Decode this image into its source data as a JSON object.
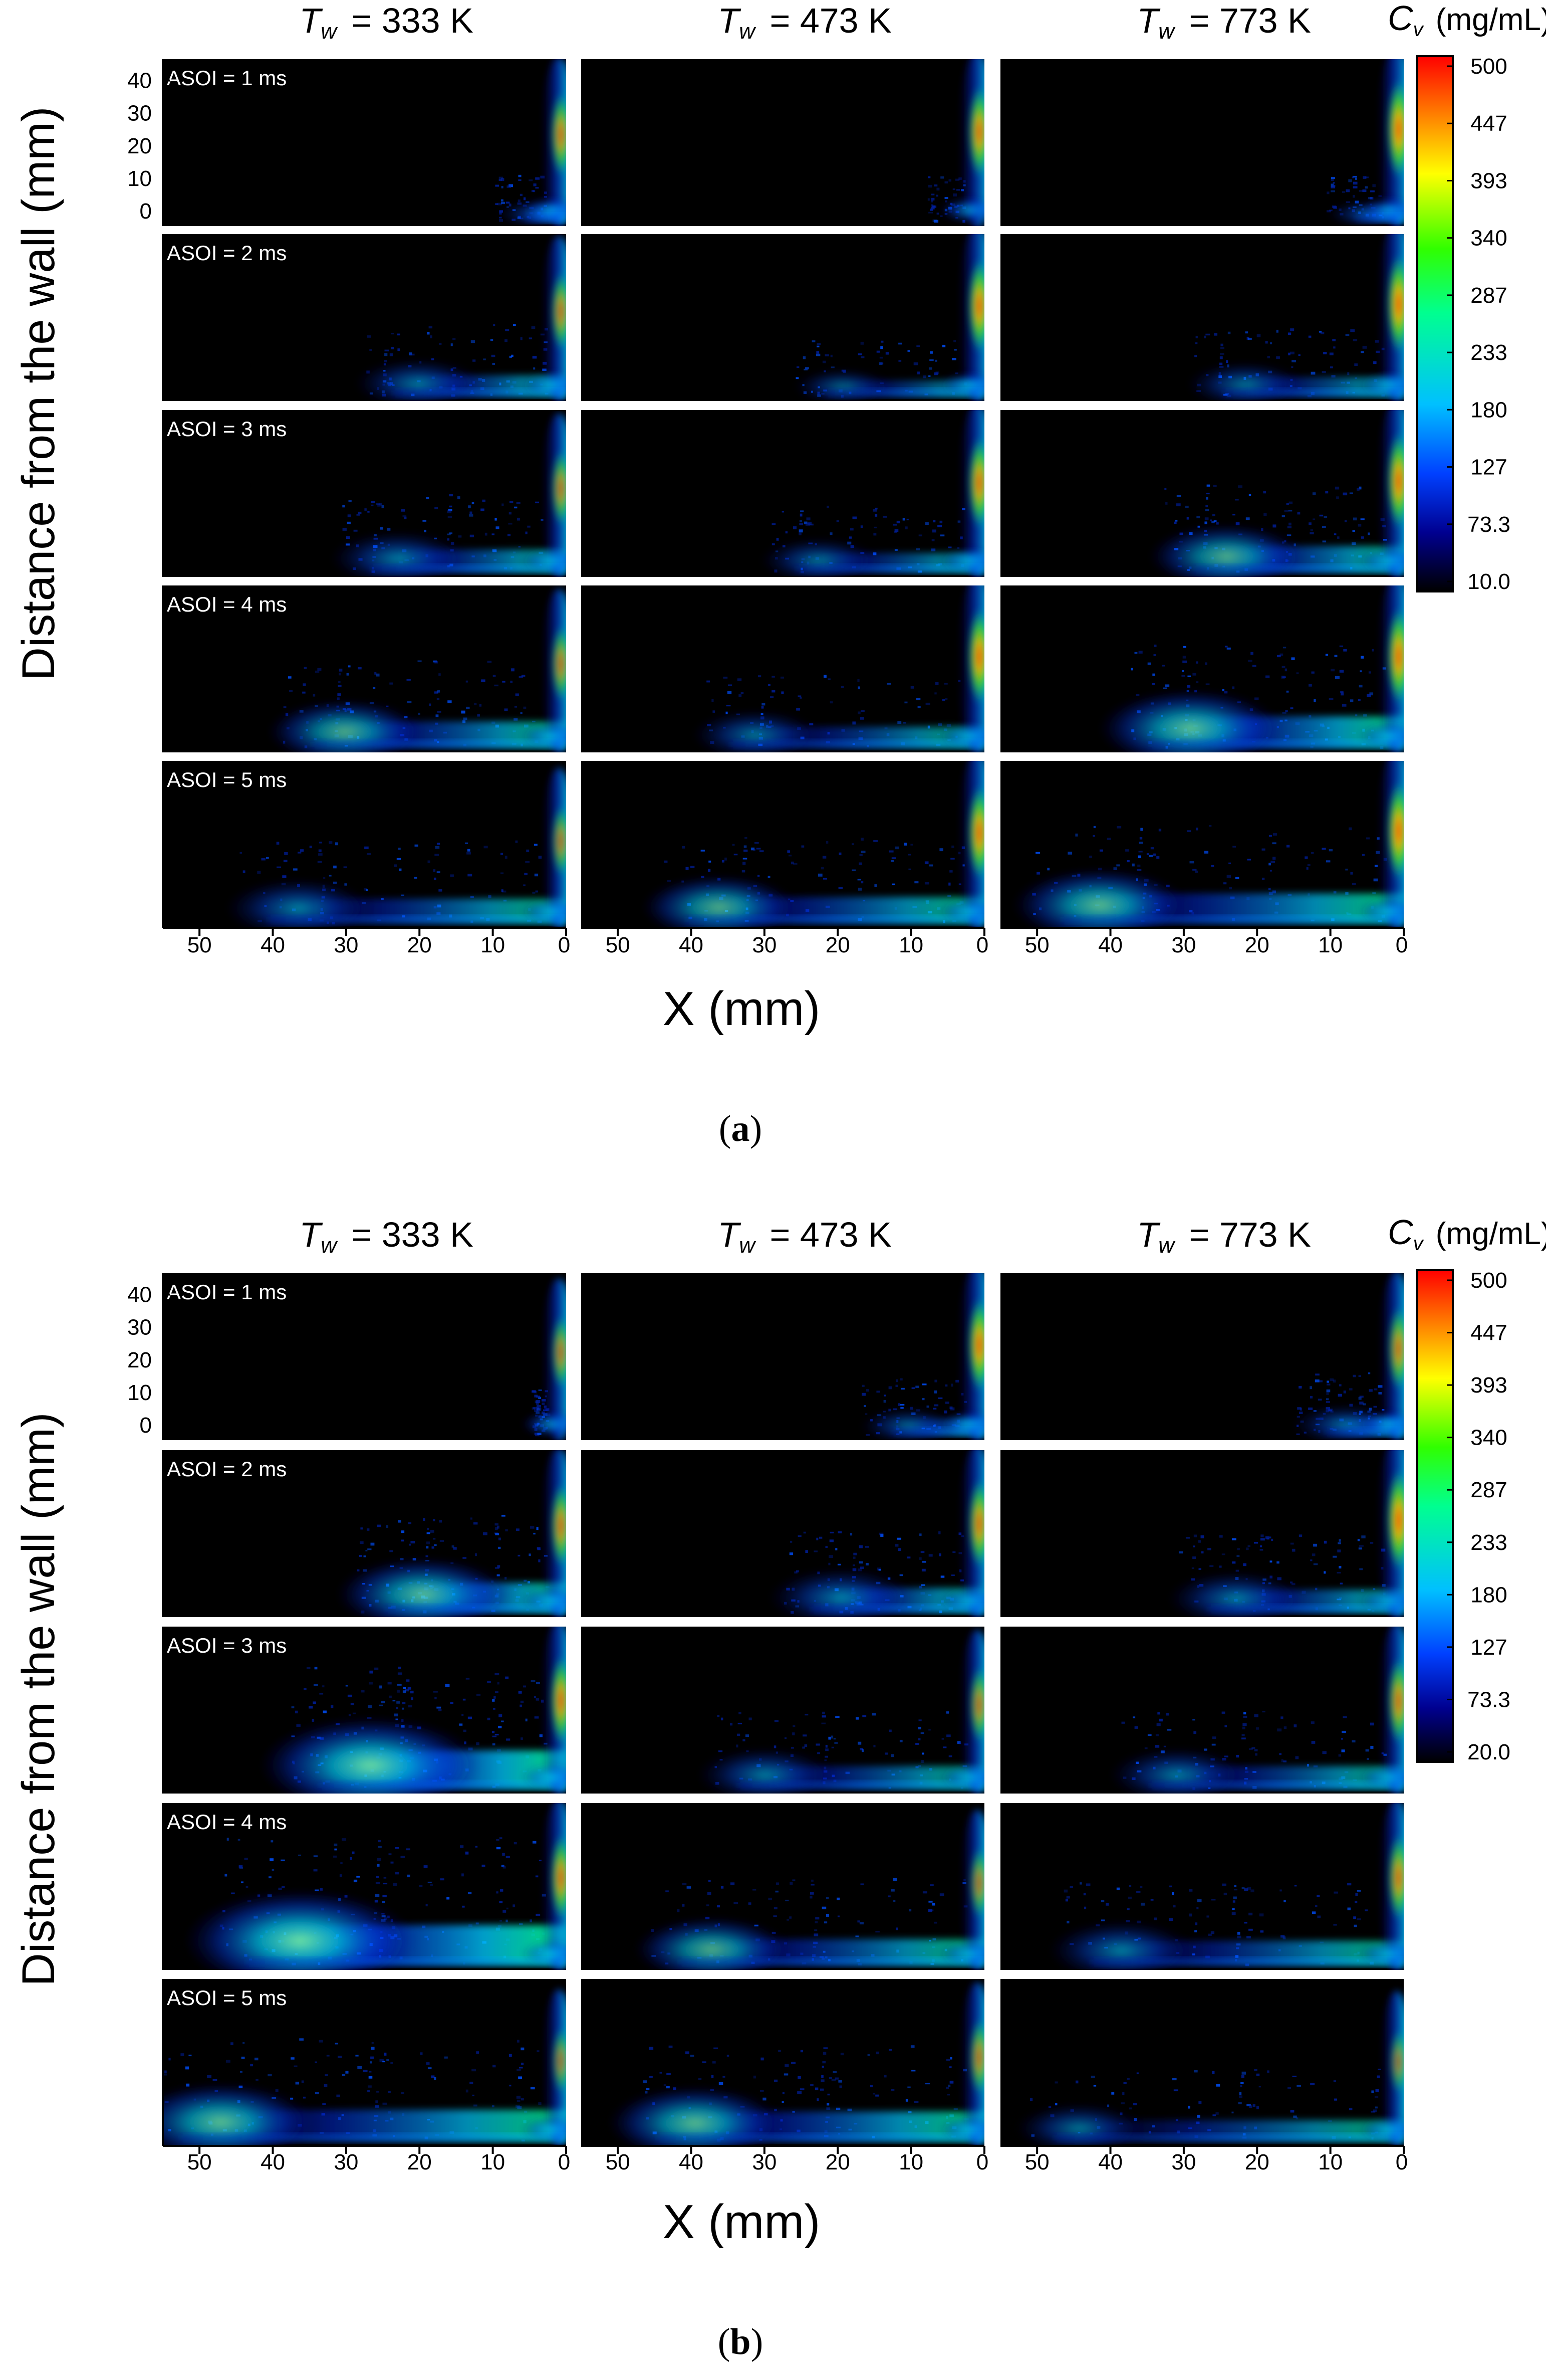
{
  "figure": {
    "panels": [
      {
        "caption_letter": "a",
        "column_titles": [
          {
            "symbol": "T",
            "sub": "w",
            "value": "= 333 K"
          },
          {
            "symbol": "T",
            "sub": "w",
            "value": "= 473 K"
          },
          {
            "symbol": "T",
            "sub": "w",
            "value": "= 773 K"
          }
        ],
        "row_labels": [
          "ASOI = 1 ms",
          "ASOI = 2 ms",
          "ASOI = 3 ms",
          "ASOI = 4 ms",
          "ASOI = 5 ms"
        ],
        "y_axis_label": "Distance from the wall (mm)",
        "y_ticks": [
          "40",
          "30",
          "20",
          "10",
          "0"
        ],
        "x_axis_label": "X (mm)",
        "x_ticks": [
          "50",
          "40",
          "30",
          "20",
          "10",
          "0"
        ],
        "colorbar": {
          "title_symbol": "C",
          "title_sub": "v",
          "title_unit": "(mg/mL)",
          "tick_labels": [
            "500",
            "447",
            "393",
            "340",
            "287",
            "233",
            "180",
            "127",
            "73.3",
            "10.0"
          ]
        },
        "spray": [
          [
            {
              "front": 7,
              "bulk": 0.05,
              "wall": 0.9
            },
            {
              "front": 5,
              "bulk": 0.03,
              "wall": 1.05
            },
            {
              "front": 8,
              "bulk": 0.05,
              "wall": 1.2
            }
          ],
          [
            {
              "front": 25,
              "bulk": 0.3,
              "wall": 0.8
            },
            {
              "front": 23,
              "bulk": 0.15,
              "wall": 1.1
            },
            {
              "front": 26,
              "bulk": 0.25,
              "wall": 1.2
            }
          ],
          [
            {
              "front": 28,
              "bulk": 0.35,
              "wall": 0.75
            },
            {
              "front": 27,
              "bulk": 0.25,
              "wall": 1.05
            },
            {
              "front": 30,
              "bulk": 0.45,
              "wall": 1.15
            }
          ],
          [
            {
              "front": 36,
              "bulk": 0.45,
              "wall": 0.75
            },
            {
              "front": 36,
              "bulk": 0.3,
              "wall": 1.15
            },
            {
              "front": 36,
              "bulk": 0.6,
              "wall": 1.15
            }
          ],
          [
            {
              "front": 42,
              "bulk": 0.4,
              "wall": 0.65
            },
            {
              "front": 42,
              "bulk": 0.45,
              "wall": 1.1
            },
            {
              "front": 48,
              "bulk": 0.55,
              "wall": 1.2
            }
          ]
        ]
      },
      {
        "caption_letter": "b",
        "column_titles": [
          {
            "symbol": "T",
            "sub": "w",
            "value": "= 333 K"
          },
          {
            "symbol": "T",
            "sub": "w",
            "value": "= 473 K"
          },
          {
            "symbol": "T",
            "sub": "w",
            "value": "= 773 K"
          }
        ],
        "row_labels": [
          "ASOI = 1 ms",
          "ASOI = 2 ms",
          "ASOI = 3 ms",
          "ASOI = 4 ms",
          "ASOI = 5 ms"
        ],
        "y_axis_label": "Distance from the wall (mm)",
        "y_ticks": [
          "40",
          "30",
          "20",
          "10",
          "0"
        ],
        "x_axis_label": "X (mm)",
        "x_ticks": [
          "50",
          "40",
          "30",
          "20",
          "10",
          "0"
        ],
        "colorbar": {
          "title_symbol": "C",
          "title_sub": "v",
          "title_unit": "(mg/mL)",
          "tick_labels": [
            "500",
            "447",
            "393",
            "340",
            "287",
            "233",
            "180",
            "127",
            "73.3",
            "20.0"
          ]
        },
        "spray": [
          [
            {
              "front": 2,
              "bulk": 0.05,
              "wall": 0.7
            },
            {
              "front": 14,
              "bulk": 0.15,
              "wall": 1.1
            },
            {
              "front": 12,
              "bulk": 0.2,
              "wall": 0.9
            }
          ],
          [
            {
              "front": 26,
              "bulk": 0.55,
              "wall": 0.9
            },
            {
              "front": 25,
              "bulk": 0.4,
              "wall": 1.0
            },
            {
              "front": 28,
              "bulk": 0.35,
              "wall": 1.25
            }
          ],
          [
            {
              "front": 35,
              "bulk": 0.8,
              "wall": 1.0
            },
            {
              "front": 35,
              "bulk": 0.35,
              "wall": 0.75
            },
            {
              "front": 36,
              "bulk": 0.35,
              "wall": 0.95
            }
          ],
          [
            {
              "front": 45,
              "bulk": 0.85,
              "wall": 0.95
            },
            {
              "front": 43,
              "bulk": 0.45,
              "wall": 0.65
            },
            {
              "front": 44,
              "bulk": 0.4,
              "wall": 0.95
            }
          ],
          [
            {
              "front": 54,
              "bulk": 0.6,
              "wall": 0.55
            },
            {
              "front": 46,
              "bulk": 0.55,
              "wall": 0.75
            },
            {
              "front": 49,
              "bulk": 0.3,
              "wall": 0.5
            }
          ]
        ]
      }
    ]
  }
}
